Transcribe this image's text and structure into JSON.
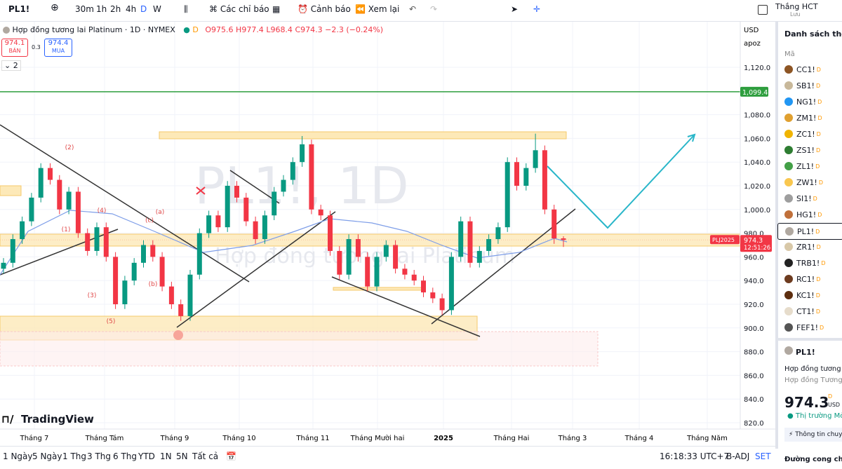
{
  "toolbar": {
    "symbol": "PL1!",
    "intervals": [
      "30m",
      "1h",
      "2h",
      "4h",
      "D",
      "W"
    ],
    "indicators": "Các chỉ báo",
    "alert": "Cảnh báo",
    "replay": "Xem lại",
    "user": "Thắng HCT",
    "save": "Lưu"
  },
  "header": {
    "title": "Hợp đồng tương lai Platinum · 1D · NYMEX",
    "badge": "D",
    "open": "O975.6",
    "high": "H977.4",
    "low": "L968.4",
    "close": "C974.3",
    "change": "−2.3 (−0.24%)"
  },
  "trade": {
    "sell_price": "974.1",
    "sell": "BÁN",
    "spread": "0.3",
    "buy_price": "974.4",
    "buy": "MUA",
    "count": "2"
  },
  "chart": {
    "currency": "USD",
    "scale_mode": "apoz",
    "ylim": [
      820,
      1120
    ],
    "yticks": [
      {
        "value": 1120,
        "label": "1,120.0"
      },
      {
        "value": 1080,
        "label": "1,080.0"
      },
      {
        "value": 1060,
        "label": "1,060.0"
      },
      {
        "value": 1040,
        "label": "1,040.0"
      },
      {
        "value": 1020,
        "label": "1,020.0"
      },
      {
        "value": 1000,
        "label": "1,000.0"
      },
      {
        "value": 980,
        "label": "980.0"
      },
      {
        "value": 960,
        "label": "960.0"
      },
      {
        "value": 940,
        "label": "940.0"
      },
      {
        "value": 920,
        "label": "920.0"
      },
      {
        "value": 900,
        "label": "900.0"
      },
      {
        "value": 880,
        "label": "880.0"
      },
      {
        "value": 860,
        "label": "860.0"
      },
      {
        "value": 840,
        "label": "840.0"
      },
      {
        "value": 820,
        "label": "820.0"
      }
    ],
    "level": {
      "value": 1099.4,
      "label": "1,099.4"
    },
    "last_price": 974.3,
    "last_symbol": "PLJ2025",
    "countdown": "12:51:26",
    "candles": [
      [
        950,
        959,
        946,
        955
      ],
      [
        955,
        979,
        951,
        975
      ],
      [
        975,
        994,
        971,
        990
      ],
      [
        990,
        1014,
        986,
        1010
      ],
      [
        1010,
        1039,
        1006,
        1035
      ],
      [
        1035,
        1039,
        1021,
        1025
      ],
      [
        1025,
        1029,
        996,
        1000
      ],
      [
        1000,
        1019,
        996,
        1015
      ],
      [
        1015,
        1019,
        976,
        980
      ],
      [
        980,
        984,
        961,
        965
      ],
      [
        965,
        989,
        961,
        985
      ],
      [
        985,
        989,
        956,
        960
      ],
      [
        960,
        964,
        916,
        920
      ],
      [
        920,
        944,
        916,
        940
      ],
      [
        940,
        959,
        936,
        955
      ],
      [
        955,
        974,
        951,
        970
      ],
      [
        970,
        974,
        956,
        960
      ],
      [
        960,
        964,
        931,
        935
      ],
      [
        935,
        939,
        916,
        920
      ],
      [
        920,
        924,
        906,
        910
      ],
      [
        910,
        949,
        906,
        945
      ],
      [
        945,
        984,
        941,
        980
      ],
      [
        980,
        999,
        976,
        995
      ],
      [
        995,
        999,
        981,
        985
      ],
      [
        985,
        1024,
        981,
        1020
      ],
      [
        1020,
        1024,
        1006,
        1010
      ],
      [
        1010,
        1014,
        986,
        990
      ],
      [
        990,
        994,
        971,
        975
      ],
      [
        975,
        999,
        971,
        995
      ],
      [
        995,
        1019,
        991,
        1015
      ],
      [
        1015,
        1029,
        1011,
        1025
      ],
      [
        1025,
        1044,
        1021,
        1040
      ],
      [
        1040,
        1062,
        1036,
        1055
      ],
      [
        1055,
        1059,
        996,
        1000
      ],
      [
        1000,
        1004,
        991,
        995
      ],
      [
        995,
        999,
        961,
        965
      ],
      [
        965,
        969,
        941,
        945
      ],
      [
        945,
        979,
        941,
        975
      ],
      [
        975,
        979,
        956,
        960
      ],
      [
        960,
        964,
        931,
        935
      ],
      [
        935,
        964,
        931,
        960
      ],
      [
        960,
        974,
        956,
        970
      ],
      [
        970,
        974,
        946,
        950
      ],
      [
        950,
        954,
        941,
        945
      ],
      [
        945,
        949,
        936,
        940
      ],
      [
        940,
        944,
        926,
        930
      ],
      [
        930,
        934,
        921,
        925
      ],
      [
        925,
        929,
        911,
        915
      ],
      [
        915,
        964,
        911,
        960
      ],
      [
        960,
        994,
        956,
        990
      ],
      [
        990,
        994,
        951,
        955
      ],
      [
        955,
        969,
        951,
        965
      ],
      [
        965,
        979,
        961,
        975
      ],
      [
        975,
        989,
        971,
        985
      ],
      [
        985,
        1044,
        981,
        1040
      ],
      [
        1040,
        1044,
        1016,
        1020
      ],
      [
        1020,
        1039,
        1016,
        1035
      ],
      [
        1035,
        1064,
        1031,
        1050
      ],
      [
        1050,
        1054,
        996,
        1000
      ],
      [
        1000,
        1004,
        971,
        975.6
      ],
      [
        975.6,
        977.4,
        968.4,
        974.3
      ]
    ],
    "xlabels": [
      "Tháng 7",
      "Tháng Tám",
      "Tháng 9",
      "Tháng 10",
      "Tháng 11",
      "Tháng Mười hai",
      "2025",
      "Tháng Hai",
      "Tháng 3",
      "Tháng 4",
      "Tháng Năm"
    ],
    "wave_labels": [
      "(2)",
      "(4)",
      "(1)",
      "(3)",
      "(5)",
      "(a)",
      "(b)",
      "(c)"
    ],
    "watermark": "PL1!, 1D",
    "watermark_sub": "Hợp đồng tương lai Platinum",
    "logo": "TradingView"
  },
  "watchlist": {
    "title": "Danh sách theo",
    "column": "Mã",
    "items": [
      {
        "symbol": "CC1!",
        "badge": "D",
        "color": "#8d5524"
      },
      {
        "symbol": "SB1!",
        "badge": "D",
        "color": "#c8b89a"
      },
      {
        "symbol": "NG1!",
        "badge": "D",
        "color": "#2196f3"
      },
      {
        "symbol": "ZM1!",
        "badge": "D",
        "color": "#e0a030"
      },
      {
        "symbol": "ZC1!",
        "badge": "D",
        "color": "#f0b400"
      },
      {
        "symbol": "ZS1!",
        "badge": "D",
        "color": "#2e7d32"
      },
      {
        "symbol": "ZL1!",
        "badge": "D",
        "color": "#43a047"
      },
      {
        "symbol": "ZW1!",
        "badge": "D",
        "color": "#f9c74f"
      },
      {
        "symbol": "SI1!",
        "badge": "D",
        "color": "#9e9e9e"
      },
      {
        "symbol": "HG1!",
        "badge": "D",
        "color": "#c0703a"
      },
      {
        "symbol": "PL1!",
        "badge": "D",
        "color": "#b0a8a0"
      },
      {
        "symbol": "ZR1!",
        "badge": "D",
        "color": "#d8c8a8"
      },
      {
        "symbol": "TRB1!",
        "badge": "D",
        "color": "#222222"
      },
      {
        "symbol": "RC1!",
        "badge": "D",
        "color": "#6d3b1f"
      },
      {
        "symbol": "KC1!",
        "badge": "D",
        "color": "#5d2e0f"
      },
      {
        "symbol": "CT1!",
        "badge": "D",
        "color": "#e6dccb"
      },
      {
        "symbol": "FEF1!",
        "badge": "D",
        "color": "#555555"
      }
    ]
  },
  "details": {
    "symbol": "PL1!",
    "name": "Hợp đồng tương lai",
    "name_sub": "Hợp đồng Tương lai",
    "price": "974.3",
    "badge": "D",
    "currency": "USD",
    "status": "Thị trường Mở",
    "info": "Thông tin chuy",
    "curve": "Đường cong chuy"
  },
  "bottom": {
    "ranges": [
      "1 Ngày",
      "5 Ngày",
      "1 Thg",
      "3 Thg",
      "6 Thg",
      "YTD",
      "1N",
      "5N",
      "Tất cả"
    ],
    "time": "16:18:33 UTC+7",
    "adj": "B-ADJ",
    "set": "SET"
  }
}
